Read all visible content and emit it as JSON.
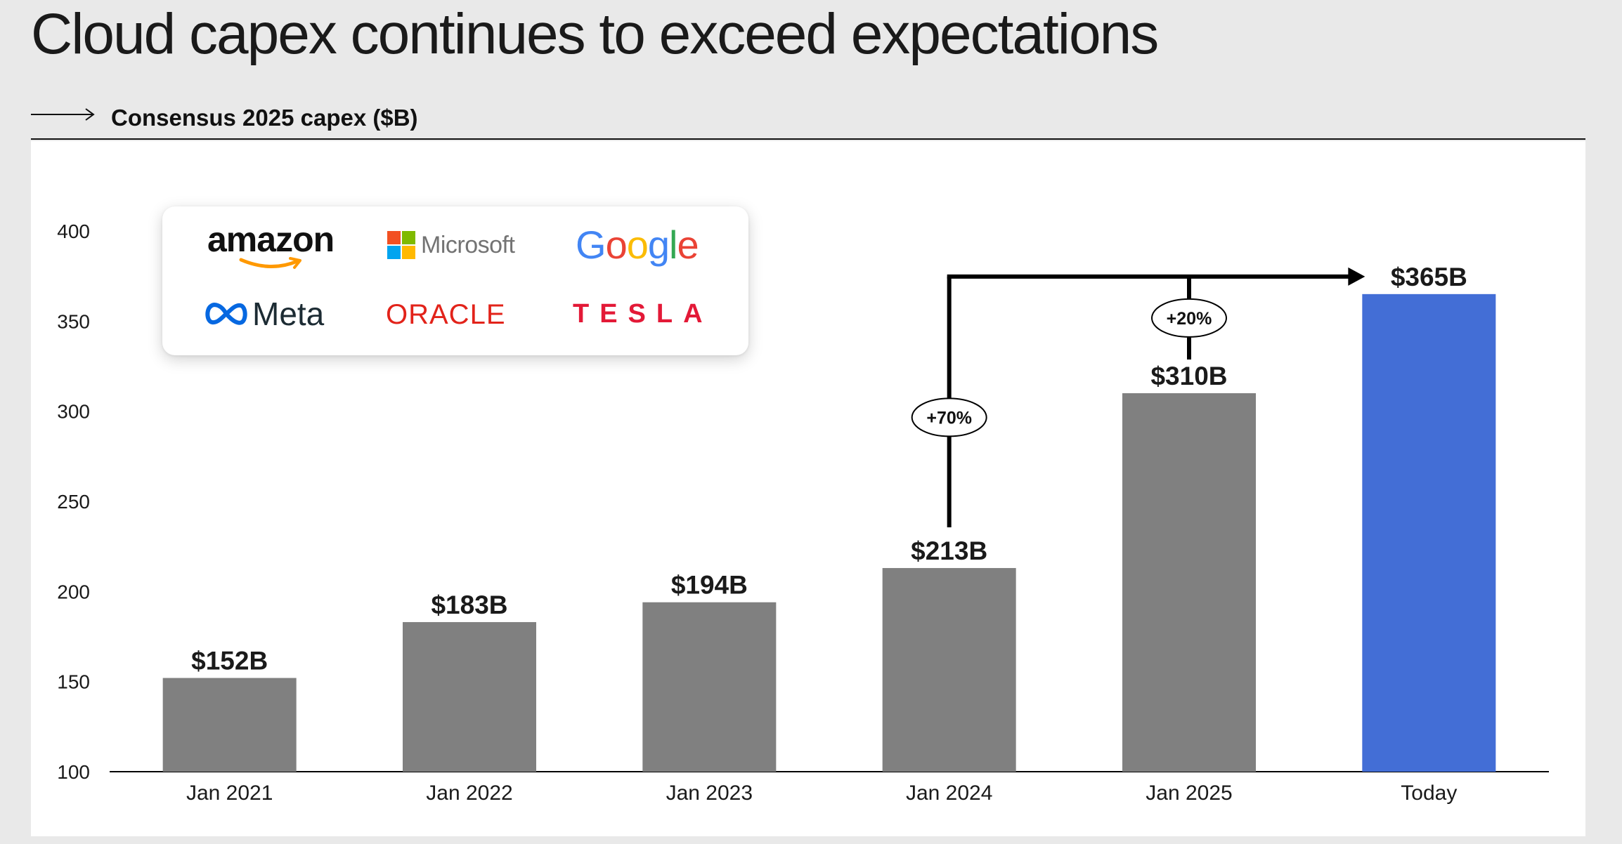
{
  "title": "Cloud capex continues to exceed expectations",
  "subtitle": "Consensus 2025 capex ($B)",
  "logos": {
    "amazon": "amazon",
    "microsoft": "Microsoft",
    "google": "Google",
    "meta": "Meta",
    "oracle": "ORACLE",
    "tesla": "TESLA"
  },
  "colors": {
    "bar_default": "#808080",
    "bar_highlight": "#436ed6",
    "background": "#e9e9e9",
    "panel": "#ffffff",
    "annotation": "#000000"
  },
  "chart_data": {
    "type": "bar",
    "title": "Consensus 2025 capex ($B)",
    "xlabel": "",
    "ylabel": "",
    "categories": [
      "Jan 2021",
      "Jan 2022",
      "Jan 2023",
      "Jan 2024",
      "Jan 2025",
      "Today"
    ],
    "values": [
      152,
      183,
      194,
      213,
      310,
      365
    ],
    "data_labels": [
      "$152B",
      "$183B",
      "$194B",
      "$213B",
      "$310B",
      "$365B"
    ],
    "highlight_index": 5,
    "ylim": [
      100,
      400
    ],
    "yticks": [
      100,
      150,
      200,
      250,
      300,
      350,
      400
    ],
    "grid": false,
    "annotations": [
      {
        "label": "+70%",
        "from": "Jan 2024",
        "to": "Today"
      },
      {
        "label": "+20%",
        "from": "Jan 2025",
        "to": "Today"
      }
    ]
  }
}
